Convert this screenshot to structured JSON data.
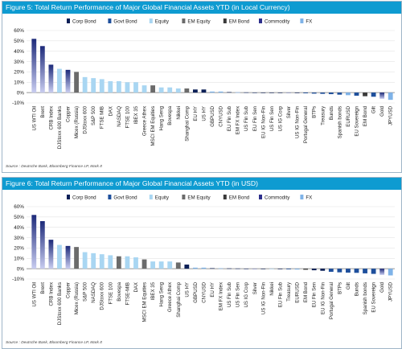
{
  "legend_items": [
    {
      "label": "Corp Bond",
      "color": "#0b1f56",
      "marker": "bar"
    },
    {
      "label": "Govt Bond",
      "color": "#1e4f9c",
      "marker": "bar"
    },
    {
      "label": "Equity",
      "color": "#a9d6f2",
      "marker": "bar"
    },
    {
      "label": "EM Equity",
      "color": "#6b6b6b",
      "marker": "bar"
    },
    {
      "label": "EM Bond",
      "color": "#3a3a3a",
      "marker": "bar"
    },
    {
      "label": "Commodity",
      "color": "#2d2f8c",
      "marker": "bar"
    },
    {
      "label": "FX",
      "color": "#7fb3e8",
      "marker": "bar"
    }
  ],
  "figures": [
    {
      "title": "Figure 5: Total Return Performance of Major Global Financial Assets YTD (in Local Currency)",
      "source": "Source : Deutsche Bank, Bloomberg Finance LP, Mark It"
    },
    {
      "title": "Figure 6: Total Return Performance of Major Global Financial Assets YTD (in USD)",
      "source": "Source : Deutsche Bank, Bloomberg Finance LP, Mark It"
    }
  ],
  "chart_data": [
    {
      "type": "bar",
      "title": "Figure 5: Total Return Performance of Major Global Financial Assets YTD (in Local Currency)",
      "ylim": [
        -10,
        60
      ],
      "yticks": [
        "60%",
        "50%",
        "40%",
        "30%",
        "20%",
        "10%",
        "0%",
        "-10%"
      ],
      "grid": true,
      "legend_position": "top",
      "categories": [
        "US WTI Oil",
        "Brent",
        "CRB Index",
        "DJStoxx 600 Banks",
        "Copper",
        "Micex (Russia)",
        "DJStoxx 600",
        "S&P 500",
        "FTSE MIB",
        "DAX",
        "NASDAQ",
        "FTSE 100",
        "IBEX 35",
        "Greece Athex",
        "MSCI EM Equities",
        "Hang Seng",
        "Bovespa",
        "Nikkei",
        "Shanghai Comp",
        "EU HY",
        "US HY",
        "GBPUSD",
        "CNYUSD",
        "EU Fin Sub",
        "EM FX Index",
        "US Fin Sub",
        "EU Fin Sen",
        "EU IG Non-Fin",
        "US Fin Sen",
        "US IG Corp",
        "Silver",
        "US IG Non-Fin",
        "Portugal General",
        "BTPs",
        "Treasury",
        "Bunds",
        "Spanish bonds",
        "EURUSD",
        "EU Sovereign",
        "EM Bond",
        "Gilt",
        "Gold",
        "JPYUSD"
      ],
      "values": [
        52,
        45,
        27,
        23,
        22,
        20,
        15,
        14,
        13,
        11,
        11,
        10,
        10,
        7,
        7,
        5,
        5,
        4,
        4,
        3,
        3,
        1,
        1,
        0.5,
        0.3,
        0.2,
        0.1,
        0,
        -0.2,
        -0.3,
        -0.4,
        -0.5,
        -0.7,
        -1,
        -1.2,
        -1.5,
        -2,
        -2.5,
        -3,
        -3.5,
        -4,
        -6,
        -7
      ],
      "asset_classes": [
        "Commodity",
        "Commodity",
        "Commodity",
        "Equity",
        "Commodity",
        "EM Equity",
        "Equity",
        "Equity",
        "Equity",
        "Equity",
        "Equity",
        "Equity",
        "Equity",
        "Equity",
        "EM Equity",
        "Equity",
        "Equity",
        "Equity",
        "EM Equity",
        "Corp Bond",
        "Corp Bond",
        "FX",
        "FX",
        "Corp Bond",
        "FX",
        "Corp Bond",
        "Corp Bond",
        "Corp Bond",
        "Corp Bond",
        "Corp Bond",
        "Commodity",
        "Corp Bond",
        "Govt Bond",
        "Govt Bond",
        "Govt Bond",
        "Govt Bond",
        "Govt Bond",
        "FX",
        "Govt Bond",
        "EM Bond",
        "Govt Bond",
        "Commodity",
        "FX"
      ]
    },
    {
      "type": "bar",
      "title": "Figure 6: Total Return Performance of Major Global Financial Assets YTD (in USD)",
      "ylim": [
        -10,
        60
      ],
      "yticks": [
        "60%",
        "50%",
        "40%",
        "30%",
        "20%",
        "10%",
        "0%",
        "-10%"
      ],
      "grid": true,
      "legend_position": "top",
      "categories": [
        "US WTI Oil",
        "Brent",
        "CRB Index",
        "DJStoxx 600 Banks",
        "Copper",
        "Micex (Russia)",
        "S&P 500",
        "NASDAQ",
        "DJStoxx 600",
        "FTSE 100",
        "Bovespa",
        "FTSE-MIB",
        "DAX",
        "MSCI EM Equities",
        "IBEX 35",
        "Hang Seng",
        "Greece Athex",
        "Shanghai Comp",
        "US HY",
        "GBPUSD",
        "CNYUSD",
        "EU HY",
        "EM FX Index",
        "US Fin Sub",
        "US Fin Sen",
        "US IG Corp",
        "Silver",
        "US IG Non-Fin",
        "Nikkei",
        "EU Fin Sub",
        "Treasury",
        "EURUSD",
        "EM Bond",
        "EU Fin Sen",
        "EU IG Non-Fin",
        "Portugal General",
        "BTPs",
        "Gilt",
        "Bunds",
        "Spanish bonds",
        "EU Sovereign",
        "Gold",
        "JPYUSD"
      ],
      "values": [
        52,
        46,
        28,
        23,
        22,
        21,
        16,
        15,
        14,
        13,
        12,
        12,
        11,
        9,
        7,
        7,
        7,
        6,
        4,
        1,
        1,
        0.5,
        0.4,
        0.3,
        0.2,
        0.1,
        0,
        -0.2,
        -0.3,
        -0.5,
        -0.6,
        -0.8,
        -1,
        -1.5,
        -2,
        -3,
        -3.5,
        -3.8,
        -4,
        -4.5,
        -5,
        -6,
        -6.5
      ],
      "asset_classes": [
        "Commodity",
        "Commodity",
        "Commodity",
        "Equity",
        "Commodity",
        "EM Equity",
        "Equity",
        "Equity",
        "Equity",
        "Equity",
        "EM Equity",
        "Equity",
        "Equity",
        "EM Equity",
        "Equity",
        "Equity",
        "Equity",
        "EM Equity",
        "Corp Bond",
        "FX",
        "FX",
        "Corp Bond",
        "FX",
        "Corp Bond",
        "Corp Bond",
        "Corp Bond",
        "Commodity",
        "Corp Bond",
        "Equity",
        "Corp Bond",
        "Govt Bond",
        "FX",
        "EM Bond",
        "Corp Bond",
        "Corp Bond",
        "Govt Bond",
        "Govt Bond",
        "Govt Bond",
        "Govt Bond",
        "Govt Bond",
        "Govt Bond",
        "Commodity",
        "FX"
      ]
    }
  ]
}
